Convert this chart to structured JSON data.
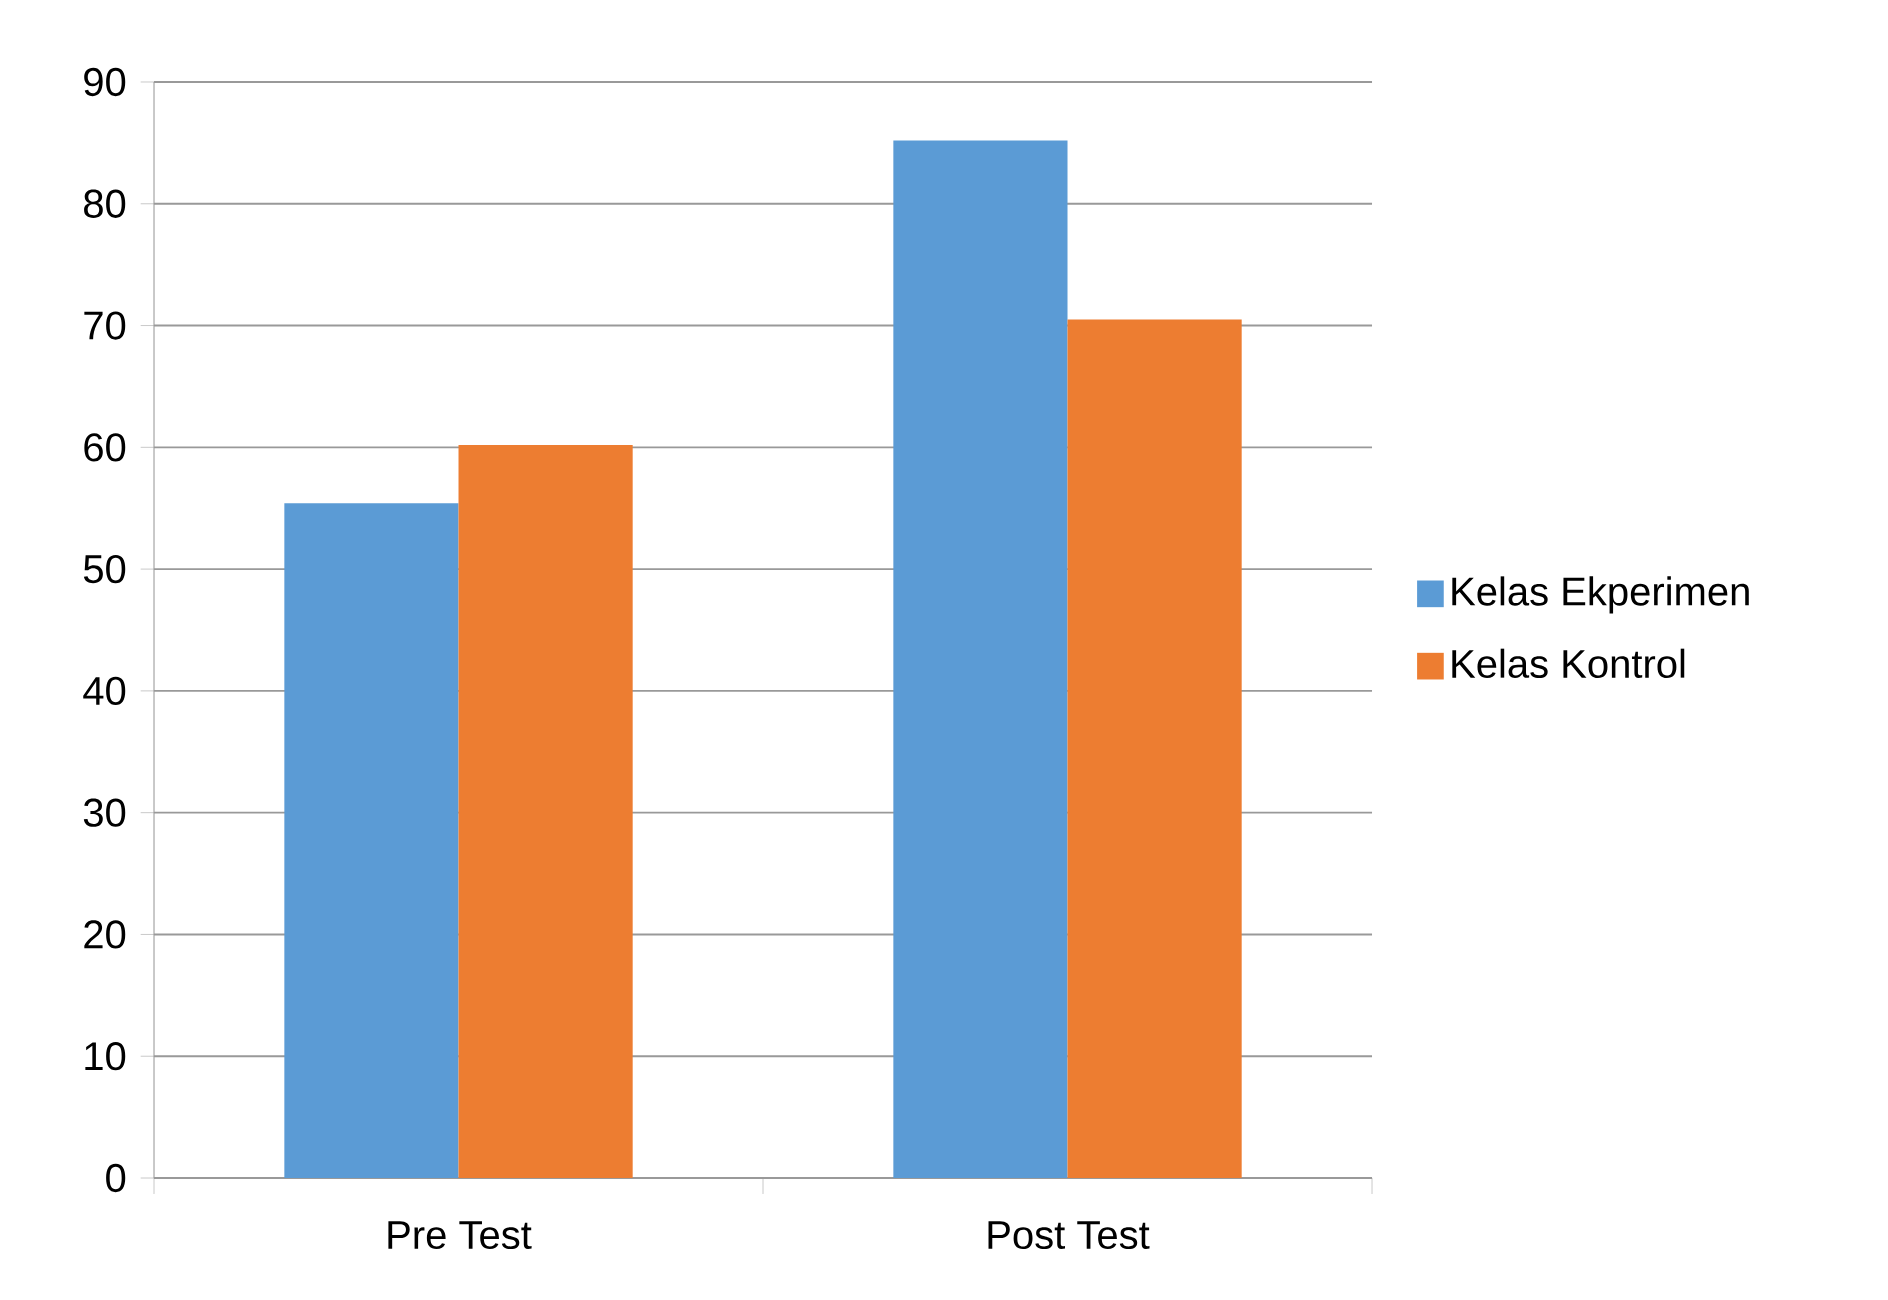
{
  "chart_data": {
    "type": "bar",
    "categories": [
      "Pre Test",
      "Post Test"
    ],
    "series": [
      {
        "name": "Kelas Ekperimen",
        "color": "#5b9bd5",
        "values": [
          55.4,
          85.2
        ]
      },
      {
        "name": "Kelas Kontrol",
        "color": "#ed7d31",
        "values": [
          60.2,
          70.5
        ]
      }
    ],
    "ylim": [
      0,
      90
    ],
    "yticks": [
      0,
      10,
      20,
      30,
      40,
      50,
      60,
      70,
      80,
      90
    ],
    "grid": "y",
    "legend": "right"
  }
}
